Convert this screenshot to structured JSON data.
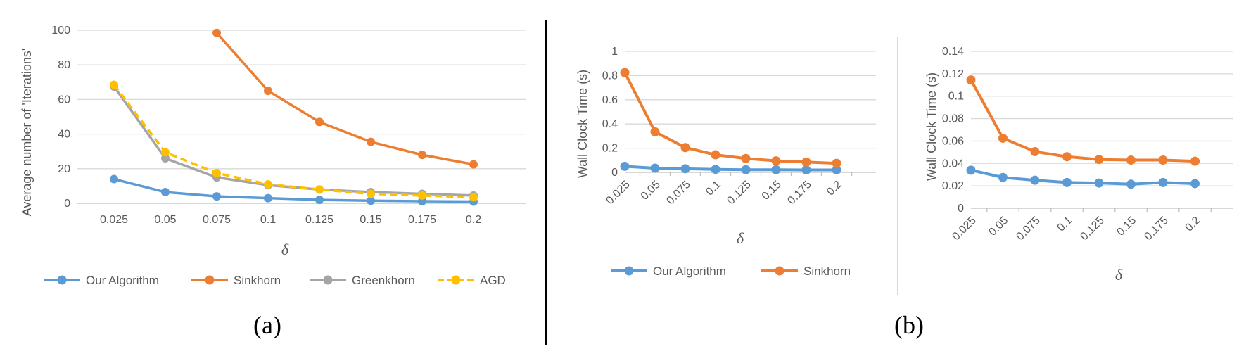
{
  "captions": {
    "a": "(a)",
    "b": "(b)"
  },
  "colors": {
    "our_algorithm": "#5B9BD5",
    "sinkhorn": "#ED7D31",
    "greenkhorn": "#A5A5A5",
    "agd": "#FFC000",
    "grid": "#D9D9D9",
    "axis": "#BFBFBF",
    "divider": "#000000"
  },
  "chart_data": [
    {
      "id": "a",
      "type": "line",
      "xlabel": "δ",
      "ylabel": "Average number of 'Iterations'",
      "categories": [
        "0.025",
        "0.05",
        "0.075",
        "0.1",
        "0.125",
        "0.15",
        "0.175",
        "0.2"
      ],
      "ylim": [
        0,
        100
      ],
      "yticks": [
        "0",
        "20",
        "40",
        "60",
        "80",
        "100"
      ],
      "grid": true,
      "legend": "bottom",
      "series": [
        {
          "name": "Our Algorithm",
          "color": "#5B9BD5",
          "dashed": false,
          "values": [
            14,
            6.5,
            4,
            3,
            2,
            1.5,
            1.2,
            1
          ]
        },
        {
          "name": "Sinkhorn",
          "color": "#ED7D31",
          "dashed": false,
          "values": [
            null,
            null,
            98.5,
            65,
            47,
            35.5,
            28,
            22.5
          ]
        },
        {
          "name": "Greenkhorn",
          "color": "#A5A5A5",
          "dashed": false,
          "values": [
            67.5,
            26,
            15,
            10.5,
            8,
            6.5,
            5.5,
            4.5
          ]
        },
        {
          "name": "AGD",
          "color": "#FFC000",
          "dashed": true,
          "values": [
            68.5,
            29.5,
            17.5,
            11,
            8,
            5.5,
            4.5,
            3.5
          ]
        }
      ]
    },
    {
      "id": "b1",
      "type": "line",
      "xlabel": "δ",
      "ylabel": "Wall Clock Time (s)",
      "categories": [
        "0.025",
        "0.05",
        "0.075",
        "0.1",
        "0.125",
        "0.15",
        "0.175",
        "0.2"
      ],
      "ylim": [
        0,
        1
      ],
      "yticks": [
        "0",
        "0.2",
        "0.4",
        "0.6",
        "0.8",
        "1"
      ],
      "grid": true,
      "legend": "bottom",
      "series": [
        {
          "name": "Our Algorithm",
          "color": "#5B9BD5",
          "dashed": false,
          "values": [
            0.05,
            0.035,
            0.03,
            0.025,
            0.022,
            0.022,
            0.02,
            0.02
          ]
        },
        {
          "name": "Sinkhorn",
          "color": "#ED7D31",
          "dashed": false,
          "values": [
            0.825,
            0.335,
            0.205,
            0.145,
            0.115,
            0.095,
            0.085,
            0.075
          ]
        }
      ]
    },
    {
      "id": "b2",
      "type": "line",
      "xlabel": "δ",
      "ylabel": "Wall Clock Time (s)",
      "categories": [
        "0.025",
        "0.05",
        "0.075",
        "0.1",
        "0.125",
        "0.15",
        "0.175",
        "0.2"
      ],
      "ylim": [
        0,
        0.14
      ],
      "yticks": [
        "0",
        "0.02",
        "0.04",
        "0.06",
        "0.08",
        "0.1",
        "0.12",
        "0.14"
      ],
      "grid": true,
      "legend": "none",
      "series": [
        {
          "color": "#5B9BD5",
          "dashed": false,
          "values": [
            0.034,
            0.0275,
            0.025,
            0.023,
            0.0225,
            0.0215,
            0.023,
            0.022
          ]
        },
        {
          "color": "#ED7D31",
          "dashed": false,
          "values": [
            0.1145,
            0.0625,
            0.0505,
            0.046,
            0.0435,
            0.043,
            0.043,
            0.042
          ]
        }
      ]
    }
  ]
}
